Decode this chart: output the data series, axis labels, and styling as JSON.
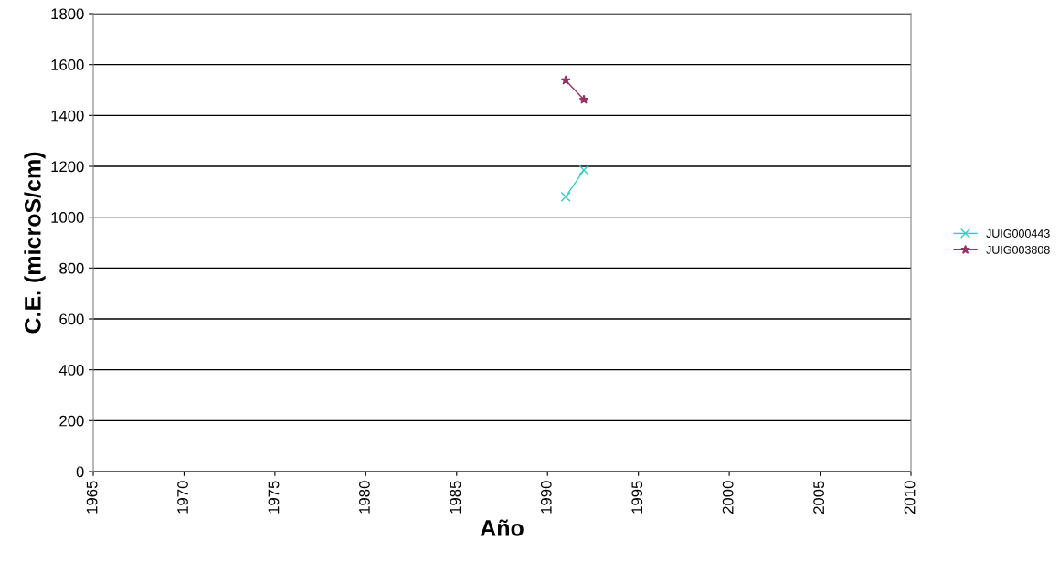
{
  "chart_data": {
    "type": "line",
    "xlabel": "Año",
    "ylabel": "C.E. (microS/cm)",
    "x": [
      1991,
      1992
    ],
    "series": [
      {
        "name": "JUIG000443",
        "color": "#33cccc",
        "marker": "cross",
        "values": [
          1080,
          1185
        ]
      },
      {
        "name": "JUIG003808",
        "color": "#993366",
        "marker": "star",
        "values": [
          1538,
          1462
        ]
      }
    ],
    "xlim": [
      1965,
      2010
    ],
    "xticks": [
      1965,
      1970,
      1975,
      1980,
      1985,
      1990,
      1995,
      2000,
      2005,
      2010
    ],
    "ylim": [
      0,
      1800
    ],
    "yticks": [
      0,
      200,
      400,
      600,
      800,
      1000,
      1200,
      1400,
      1600,
      1800
    ],
    "grid": "y",
    "legend": "right",
    "line_style": "solid"
  }
}
